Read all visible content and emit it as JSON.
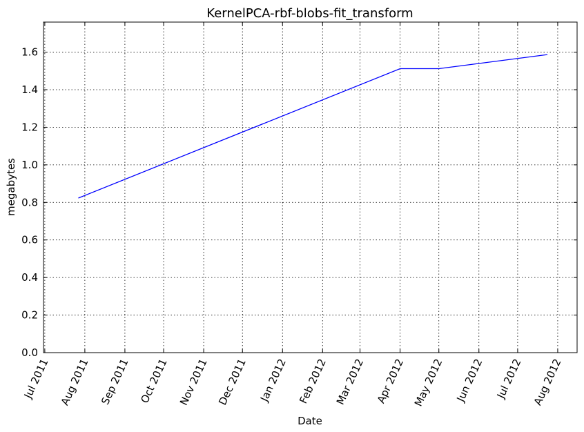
{
  "chart_data": {
    "type": "line",
    "title": "KernelPCA-rbf-blobs-fit_transform",
    "xlabel": "Date",
    "ylabel": "megabytes",
    "x_ticks": [
      "Jul 2011",
      "Aug 2011",
      "Sep 2011",
      "Oct 2011",
      "Nov 2011",
      "Dec 2011",
      "Jan 2012",
      "Feb 2012",
      "Mar 2012",
      "Apr 2012",
      "May 2012",
      "Jun 2012",
      "Jul 2012",
      "Aug 2012"
    ],
    "y_ticks": [
      "0.0",
      "0.2",
      "0.4",
      "0.6",
      "0.8",
      "1.0",
      "1.2",
      "1.4",
      "1.6"
    ],
    "xlim": [
      "2011-06-30",
      "2012-08-16"
    ],
    "ylim": [
      0,
      1.76
    ],
    "grid": true,
    "series": [
      {
        "color": "#0000ff",
        "points": [
          {
            "x": "2011-07-27",
            "y": 0.823
          },
          {
            "x": "2012-04-01",
            "y": 1.512
          },
          {
            "x": "2012-05-01",
            "y": 1.512
          },
          {
            "x": "2012-07-24",
            "y": 1.587
          }
        ]
      }
    ]
  }
}
